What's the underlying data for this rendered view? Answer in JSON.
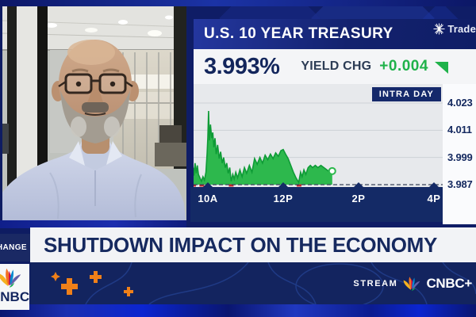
{
  "ticker": {
    "title": "U.S. 10 YEAR TREASURY",
    "value": "3.993%",
    "change_label": "YIELD CHG",
    "change_value": "+0.004",
    "badge": "INTRA DAY",
    "sponsor": "Trade"
  },
  "chart_data": {
    "type": "area",
    "title": "U.S. 10 Year Treasury yield, intraday",
    "x_unit": "hour of day",
    "y_ticks": [
      4.023,
      4.011,
      3.999,
      3.987
    ],
    "x_ticks": [
      {
        "t": 10,
        "label": "10A"
      },
      {
        "t": 12,
        "label": "12P"
      },
      {
        "t": 14,
        "label": "2P"
      },
      {
        "t": 16,
        "label": "4P"
      }
    ],
    "x_range_hours": [
      9.58,
      16
    ],
    "y_range": [
      3.983,
      4.031
    ],
    "baseline": 3.987,
    "last_value": 3.993,
    "grid": true,
    "series": [
      [
        9.58,
        3.9925
      ],
      [
        9.61,
        3.9945
      ],
      [
        9.63,
        3.991
      ],
      [
        9.66,
        3.9965
      ],
      [
        9.69,
        3.992
      ],
      [
        9.72,
        3.9955
      ],
      [
        9.75,
        3.9915
      ],
      [
        9.79,
        3.99
      ],
      [
        9.83,
        3.9885
      ],
      [
        9.87,
        3.9905
      ],
      [
        9.91,
        3.989
      ],
      [
        9.95,
        3.9925
      ],
      [
        9.98,
        4.001
      ],
      [
        10.0,
        4.008
      ],
      [
        10.02,
        4.0195
      ],
      [
        10.04,
        4.0065
      ],
      [
        10.07,
        4.0135
      ],
      [
        10.1,
        4.0075
      ],
      [
        10.13,
        4.01
      ],
      [
        10.16,
        4.0035
      ],
      [
        10.19,
        4.0075
      ],
      [
        10.22,
        4.0005
      ],
      [
        10.26,
        4.0045
      ],
      [
        10.3,
        3.9985
      ],
      [
        10.34,
        4.0015
      ],
      [
        10.38,
        3.9965
      ],
      [
        10.42,
        3.999
      ],
      [
        10.46,
        3.9945
      ],
      [
        10.5,
        3.9965
      ],
      [
        10.54,
        3.992
      ],
      [
        10.58,
        3.9945
      ],
      [
        10.62,
        3.9885
      ],
      [
        10.66,
        3.9915
      ],
      [
        10.7,
        3.9895
      ],
      [
        10.74,
        3.9925
      ],
      [
        10.79,
        3.99
      ],
      [
        10.85,
        3.9935
      ],
      [
        10.91,
        3.9905
      ],
      [
        10.97,
        3.9945
      ],
      [
        11.03,
        3.992
      ],
      [
        11.1,
        3.9955
      ],
      [
        11.17,
        3.9925
      ],
      [
        11.24,
        3.9985
      ],
      [
        11.31,
        3.996
      ],
      [
        11.38,
        3.999
      ],
      [
        11.45,
        3.9965
      ],
      [
        11.52,
        4.0
      ],
      [
        11.59,
        3.998
      ],
      [
        11.66,
        4.0005
      ],
      [
        11.73,
        3.9985
      ],
      [
        11.8,
        4.001
      ],
      [
        11.87,
        3.9995
      ],
      [
        11.94,
        4.002
      ],
      [
        12.0,
        4.0025
      ],
      [
        12.06,
        4.0005
      ],
      [
        12.13,
        3.9985
      ],
      [
        12.2,
        3.9955
      ],
      [
        12.27,
        3.9925
      ],
      [
        12.34,
        3.99
      ],
      [
        12.41,
        3.988
      ],
      [
        12.46,
        3.9925
      ],
      [
        12.5,
        3.9905
      ],
      [
        12.55,
        3.9935
      ],
      [
        12.6,
        3.9915
      ],
      [
        12.66,
        3.9945
      ],
      [
        12.72,
        3.9955
      ],
      [
        12.78,
        3.9945
      ],
      [
        12.85,
        3.9955
      ],
      [
        12.92,
        3.9945
      ],
      [
        13.0,
        3.9955
      ],
      [
        13.08,
        3.9945
      ],
      [
        13.16,
        3.9935
      ],
      [
        13.24,
        3.9925
      ],
      [
        13.3,
        3.993
      ]
    ],
    "below_baseline_marks_t": [
      9.62,
      9.84,
      10.62,
      12.42
    ],
    "colors": {
      "fill": "#2db84d",
      "line": "#0e9b36",
      "baseline_dash": "#39435a",
      "grid": "#cdd1d6",
      "axis_bar": "#142a66",
      "negative_mark": "#c4262e",
      "plot_bg": "#e7e9ec"
    }
  },
  "banner": {
    "show_tag": "HANGE",
    "headline": "SHUTDOWN IMPACT ON THE ECONOMY"
  },
  "footer": {
    "stream_label": "STREAM",
    "brand": "CNBC+",
    "logo_text": "CNBC"
  },
  "colors": {
    "accent_green": "#1fb24a",
    "navy": "#13245f",
    "royal_blue": "#1b2fb0",
    "banner_bg": "#f2f3f6",
    "orange_accent": "#f08019"
  }
}
